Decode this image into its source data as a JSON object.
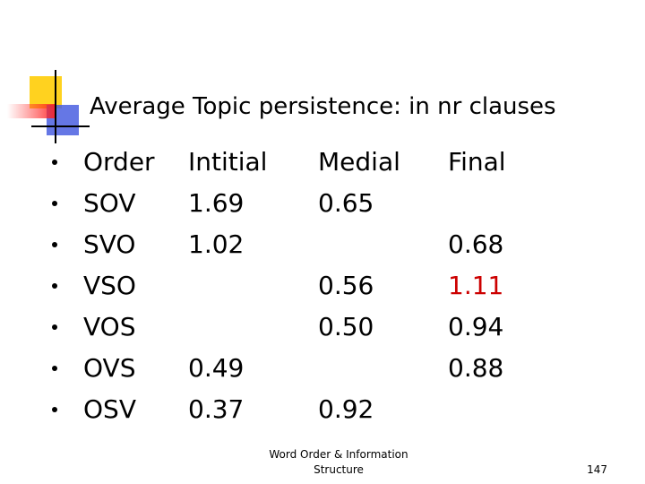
{
  "slide": {
    "title": "Average Topic persistence: in nr clauses",
    "table": {
      "header": [
        "Order",
        "Intitial",
        "Medial",
        "Final"
      ],
      "rows": [
        [
          "SOV",
          "1.69",
          "0.65",
          null
        ],
        [
          "SVO",
          "1.02",
          null,
          "0.68"
        ],
        [
          "VSO",
          null,
          "0.56",
          "1.11"
        ],
        [
          "VOS",
          null,
          "0.50",
          "0.94"
        ],
        [
          "OVS",
          "0.49",
          null,
          "0.88"
        ],
        [
          "OSV",
          "0.37",
          "0.92",
          null
        ]
      ],
      "text_color": "#000000",
      "highlight": {
        "row": 2,
        "col": 3,
        "color": "#cc0000"
      }
    },
    "footer": {
      "lines": [
        "Word Order & Information",
        "Structure"
      ],
      "page": "147"
    }
  }
}
